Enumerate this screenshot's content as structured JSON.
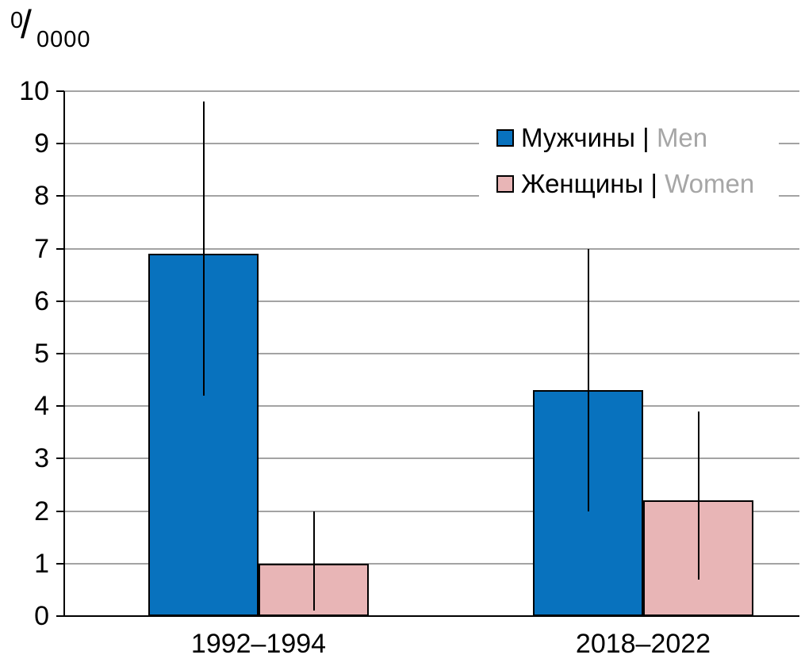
{
  "unit": {
    "numerator": "0",
    "slash": "/",
    "denominator": "0000"
  },
  "colors": {
    "men": "#0872be",
    "women": "#e8b5b6",
    "bar_border": "#000000",
    "grid": "#a3a3a3",
    "axis": "#000000",
    "error_bar": "#000000",
    "text": "#000000",
    "secondary_text": "#a6a6a6"
  },
  "legend": {
    "items": [
      {
        "label_ru": "Мужчины",
        "separator": " | ",
        "label_en": "Men",
        "color_key": "men"
      },
      {
        "label_ru": "Женщины",
        "separator": " | ",
        "label_en": "Women",
        "color_key": "women"
      }
    ]
  },
  "chart_data": {
    "type": "bar",
    "categories": [
      "1992–1994",
      "2018–2022"
    ],
    "series": [
      {
        "name": "Мужчины | Men",
        "color_key": "men",
        "values": [
          6.9,
          4.3
        ],
        "error_low": [
          4.2,
          2.0
        ],
        "error_high": [
          9.8,
          7.0
        ]
      },
      {
        "name": "Женщины | Women",
        "color_key": "women",
        "values": [
          1.0,
          2.2
        ],
        "error_low": [
          0.1,
          0.7
        ],
        "error_high": [
          2.0,
          3.9
        ]
      }
    ],
    "title": "",
    "xlabel": "",
    "ylabel": "0/0000",
    "ylim": [
      0,
      10
    ],
    "ytick_step": 1,
    "grid": true,
    "error_bars": true,
    "legend_position": "top-right"
  }
}
